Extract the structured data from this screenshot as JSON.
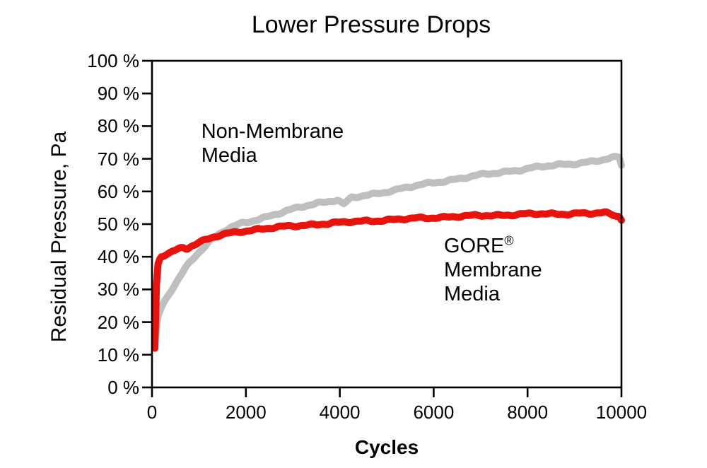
{
  "title": "Lower Pressure Drops",
  "colors": {
    "background": "#ffffff",
    "axis": "#000000",
    "text": "#000000",
    "gore_red": "#e8130d",
    "non_membrane_gray": "#bfbfbf"
  },
  "chart_data": {
    "type": "line",
    "title": "Lower Pressure Drops",
    "xlabel": "Cycles",
    "ylabel": "Residual Pressure, Pa",
    "xlim": [
      0,
      10000
    ],
    "ylim": [
      0,
      100
    ],
    "grid": false,
    "frame": true,
    "legend_position": "inline-annotations",
    "x_ticks": {
      "values": [
        0,
        2000,
        4000,
        6000,
        8000,
        10000
      ],
      "labels": [
        "0",
        "2000",
        "4000",
        "6000",
        "8000",
        "10000"
      ]
    },
    "y_ticks": {
      "values": [
        0,
        10,
        20,
        30,
        40,
        50,
        60,
        70,
        80,
        90,
        100
      ],
      "labels": [
        "0 %",
        "10 %",
        "20 %",
        "30 %",
        "40 %",
        "50 %",
        "60 %",
        "70 %",
        "80 %",
        "90 %",
        "100 %"
      ]
    },
    "series": [
      {
        "name": "Non-Membrane Media",
        "color": "#bfbfbf",
        "stroke_width": 10,
        "points": [
          [
            60,
            13.5
          ],
          [
            80,
            17
          ],
          [
            105,
            20
          ],
          [
            140,
            22.5
          ],
          [
            200,
            24.5
          ],
          [
            280,
            26.5
          ],
          [
            360,
            28.5
          ],
          [
            450,
            30.5
          ],
          [
            550,
            32.8
          ],
          [
            680,
            35.8
          ],
          [
            800,
            38.3
          ],
          [
            950,
            40.8
          ],
          [
            1100,
            43
          ],
          [
            1250,
            45
          ],
          [
            1400,
            46.6
          ],
          [
            1550,
            48
          ],
          [
            1700,
            49
          ],
          [
            1900,
            50.1
          ],
          [
            2100,
            50.9
          ],
          [
            2300,
            51.7
          ],
          [
            2600,
            52.9
          ],
          [
            2900,
            54.1
          ],
          [
            3200,
            55.3
          ],
          [
            3500,
            56.4
          ],
          [
            3750,
            57
          ],
          [
            3950,
            57.5
          ],
          [
            4080,
            56
          ],
          [
            4250,
            58
          ],
          [
            4500,
            58.6
          ],
          [
            4800,
            59.4
          ],
          [
            5100,
            60.3
          ],
          [
            5400,
            61.1
          ],
          [
            5700,
            61.9
          ],
          [
            6000,
            62.7
          ],
          [
            6300,
            63.4
          ],
          [
            6600,
            64.1
          ],
          [
            6900,
            64.8
          ],
          [
            7200,
            65.4
          ],
          [
            7500,
            66
          ],
          [
            7800,
            66.6
          ],
          [
            8100,
            67.2
          ],
          [
            8400,
            67.7
          ],
          [
            8700,
            68.2
          ],
          [
            9000,
            68.6
          ],
          [
            9300,
            69
          ],
          [
            9600,
            69.6
          ],
          [
            9850,
            70.3
          ],
          [
            9950,
            70.6
          ],
          [
            10000,
            68
          ]
        ]
      },
      {
        "name": "GORE® Membrane Media",
        "color": "#e8130d",
        "stroke_width": 10,
        "points": [
          [
            60,
            12
          ],
          [
            75,
            22
          ],
          [
            90,
            30
          ],
          [
            110,
            36
          ],
          [
            140,
            38.8
          ],
          [
            200,
            40
          ],
          [
            280,
            40.6
          ],
          [
            360,
            41
          ],
          [
            450,
            41.7
          ],
          [
            550,
            42.3
          ],
          [
            650,
            42.9
          ],
          [
            750,
            42.7
          ],
          [
            850,
            43.5
          ],
          [
            1000,
            44.4
          ],
          [
            1150,
            45.2
          ],
          [
            1300,
            45.9
          ],
          [
            1450,
            46.5
          ],
          [
            1600,
            47
          ],
          [
            1750,
            47.4
          ],
          [
            1900,
            47.8
          ],
          [
            2100,
            48.2
          ],
          [
            2350,
            48.6
          ],
          [
            2600,
            48.9
          ],
          [
            2850,
            49.2
          ],
          [
            3100,
            49.5
          ],
          [
            3350,
            49.8
          ],
          [
            3600,
            50.1
          ],
          [
            3850,
            50.3
          ],
          [
            4100,
            50.5
          ],
          [
            4350,
            50.8
          ],
          [
            4600,
            51
          ],
          [
            4900,
            51.2
          ],
          [
            5200,
            51.4
          ],
          [
            5500,
            51.6
          ],
          [
            5800,
            51.9
          ],
          [
            6100,
            52.1
          ],
          [
            6400,
            52.3
          ],
          [
            6700,
            52.4
          ],
          [
            7000,
            52.6
          ],
          [
            7300,
            52.7
          ],
          [
            7600,
            52.9
          ],
          [
            7900,
            53
          ],
          [
            8200,
            53.1
          ],
          [
            8500,
            53.1
          ],
          [
            8800,
            53.2
          ],
          [
            9100,
            53.3
          ],
          [
            9400,
            53.2
          ],
          [
            9650,
            53.4
          ],
          [
            9800,
            52.9
          ],
          [
            9950,
            52.3
          ],
          [
            10000,
            51.2
          ]
        ]
      }
    ],
    "annotations": [
      {
        "id": "non-membrane-label",
        "lines": [
          "Non-Membrane",
          "Media"
        ],
        "x": 1050,
        "y": 82
      },
      {
        "id": "gore-membrane-label",
        "lines": [
          "GORE®",
          "Membrane",
          "Media"
        ],
        "x": 6220,
        "y": 47
      }
    ]
  }
}
